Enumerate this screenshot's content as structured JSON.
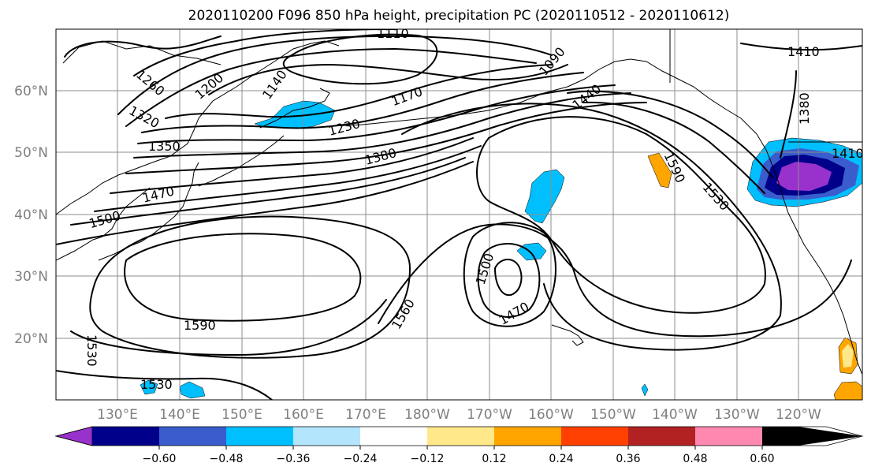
{
  "title": "2020110200 F096 850 hPa height, precipitation PC (2020110512 - 2020110612)",
  "lat_labels": [
    "60°N",
    "50°N",
    "40°N",
    "30°N",
    "20°N"
  ],
  "lon_labels": [
    "130°E",
    "140°E",
    "150°E",
    "160°E",
    "170°E",
    "180°W",
    "170°W",
    "160°W",
    "150°W",
    "140°W",
    "130°W",
    "120°W"
  ],
  "colorbar": {
    "tick_labels": [
      "−0.60",
      "−0.48",
      "−0.36",
      "−0.24",
      "−0.12",
      "0.12",
      "0.24",
      "0.36",
      "0.48",
      "0.60"
    ],
    "colors": [
      "#9932cc",
      "#00008b",
      "#3a5ccc",
      "#00bfff",
      "#b3e5fc",
      "#ffffff",
      "#ffe88a",
      "#ffa500",
      "#ff4000",
      "#b22222",
      "#ff88b0"
    ]
  },
  "contour_labels": [
    "1110",
    "1410",
    "1260",
    "1200",
    "1140",
    "1090",
    "1170",
    "1440",
    "1380",
    "1320",
    "1230",
    "1350",
    "1380",
    "1410",
    "1590",
    "1470",
    "1530",
    "1500",
    "1530",
    "1500",
    "1470",
    "1560",
    "1590",
    "1530",
    "1530"
  ]
}
